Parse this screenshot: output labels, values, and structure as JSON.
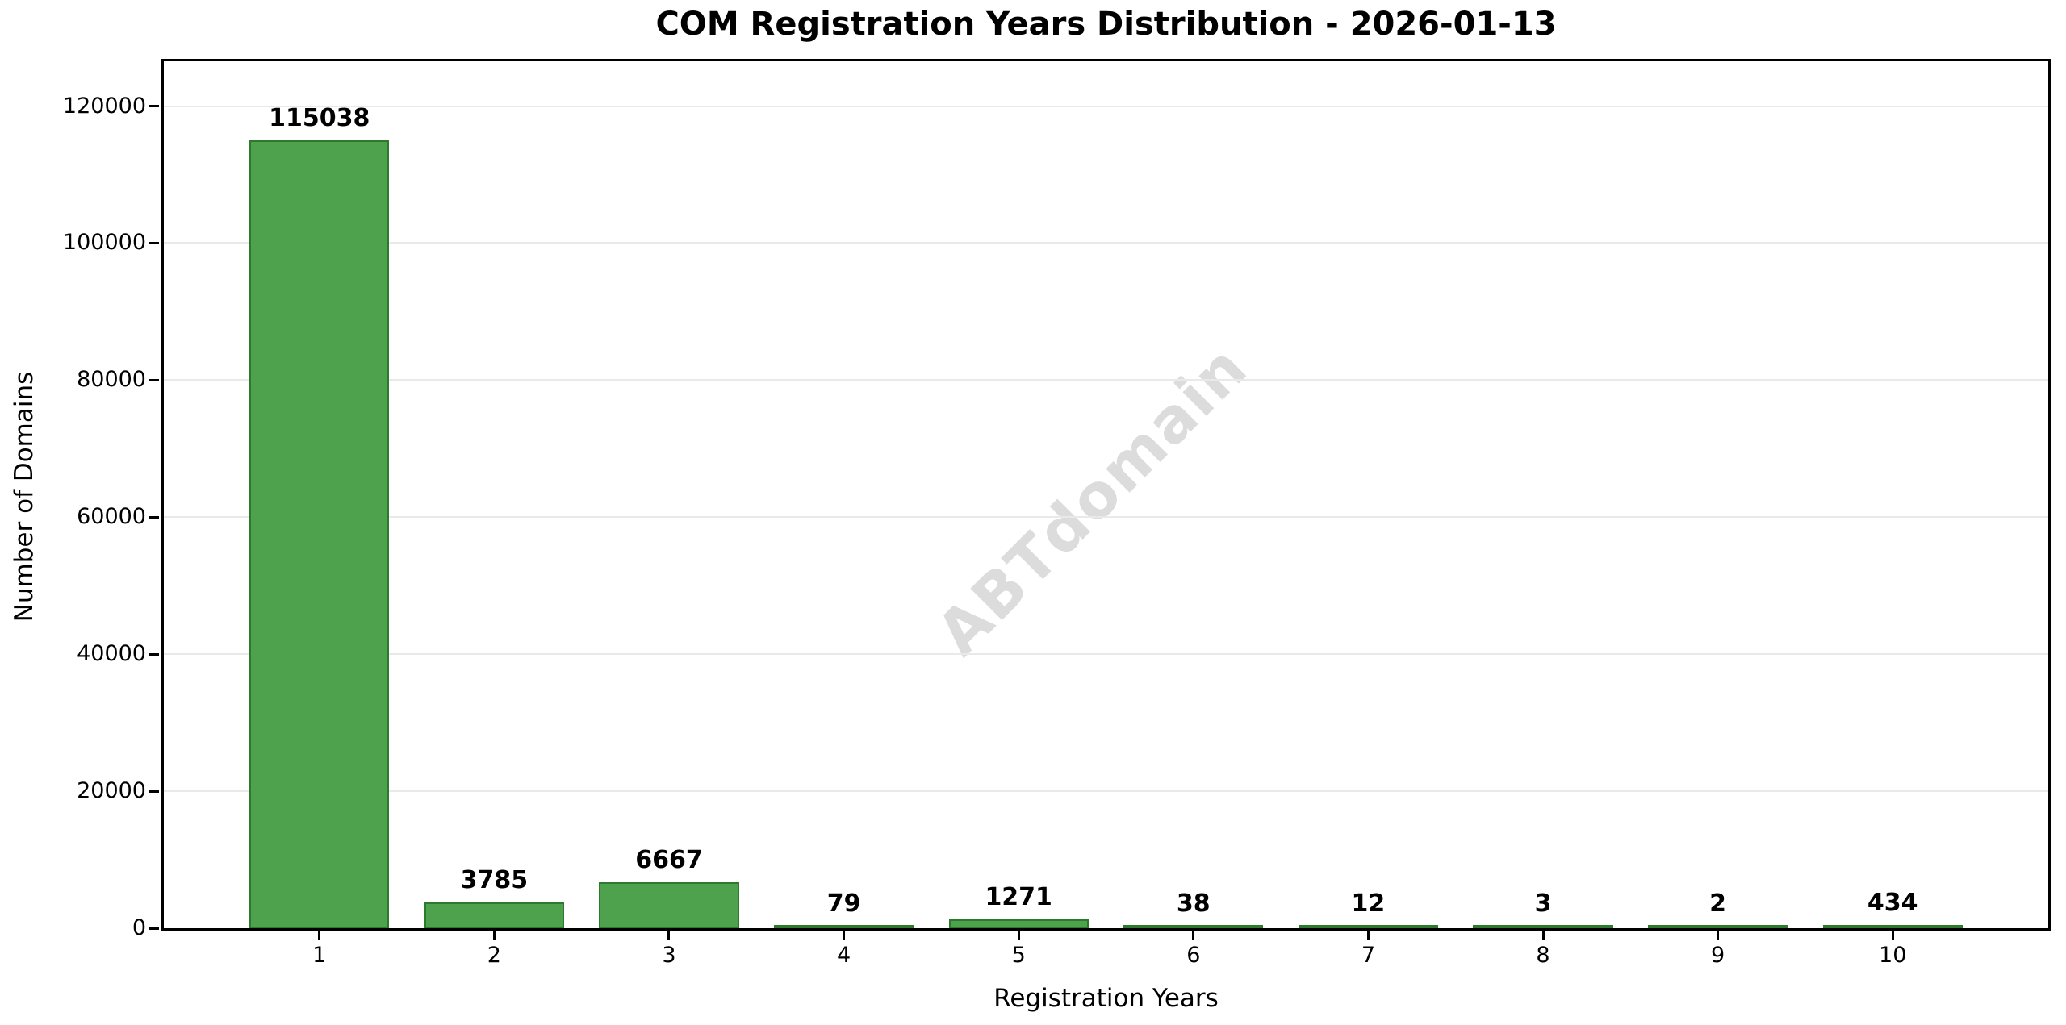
{
  "chart_data": {
    "type": "bar",
    "title": "COM Registration Years Distribution - 2026-01-13",
    "xlabel": "Registration Years",
    "ylabel": "Number of Domains",
    "categories": [
      "1",
      "2",
      "3",
      "4",
      "5",
      "6",
      "7",
      "8",
      "9",
      "10"
    ],
    "values": [
      115038,
      3785,
      6667,
      79,
      1271,
      38,
      12,
      3,
      2,
      434
    ],
    "yticks": [
      0,
      20000,
      40000,
      60000,
      80000,
      100000,
      120000
    ],
    "ylim": [
      0,
      126542
    ],
    "xlim": [
      0.11,
      10.89
    ],
    "bar_width": 0.8,
    "grid": "horizontal",
    "watermark": "ABTdomain",
    "colors": {
      "bar_fill": "#4EA24E",
      "bar_edge": "#2D7A2D",
      "gridline": "#E9E9E9",
      "axis": "#000000",
      "text": "#000000",
      "watermark": "#DCDCDC",
      "background": "#FFFFFF"
    }
  }
}
